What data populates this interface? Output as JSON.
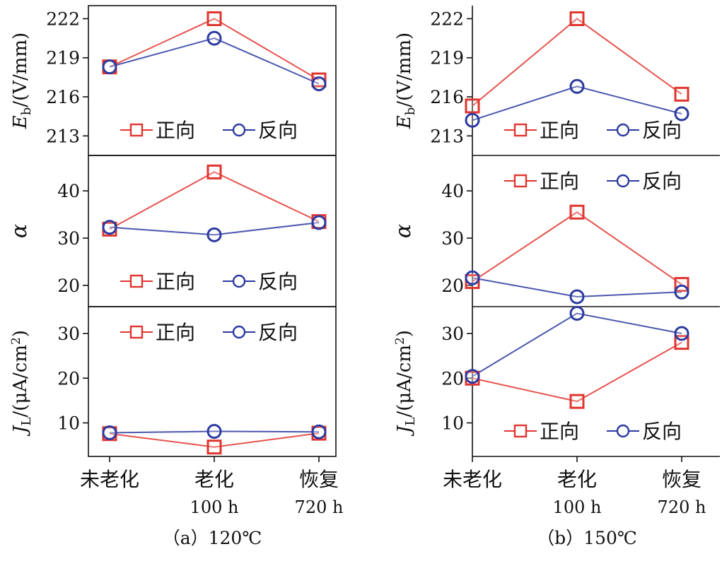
{
  "figure": {
    "categories": [
      "未老化",
      "老化",
      "恢复"
    ],
    "category_sublabels": [
      "",
      "100 h",
      "720 h"
    ],
    "legend": {
      "forward": "正向",
      "reverse": "反向"
    },
    "colors": {
      "forward": "#e0352f",
      "reverse": "#2b3aa0",
      "axis": "#111111"
    }
  },
  "chart_data": [
    {
      "type": "line",
      "panel": "a",
      "row": 0,
      "caption": "（a）120℃",
      "ylabel": "E_b/(V/mm)",
      "ylim": [
        211.5,
        223
      ],
      "yticks": [
        213,
        216,
        219,
        222
      ],
      "categories": [
        "未老化",
        "老化 100 h",
        "恢复 720 h"
      ],
      "series": [
        {
          "name": "正向",
          "values": [
            218.3,
            222.0,
            217.3
          ]
        },
        {
          "name": "反向",
          "values": [
            218.3,
            220.5,
            217.0
          ]
        }
      ],
      "legend_position": "bottom"
    },
    {
      "type": "line",
      "panel": "a",
      "row": 1,
      "caption": "（a）120℃",
      "ylabel": "α",
      "ylim": [
        15.5,
        47.5
      ],
      "yticks": [
        20,
        30,
        40
      ],
      "categories": [
        "未老化",
        "老化 100 h",
        "恢复 720 h"
      ],
      "series": [
        {
          "name": "正向",
          "values": [
            31.9,
            44.0,
            33.5
          ]
        },
        {
          "name": "反向",
          "values": [
            32.3,
            30.7,
            33.3
          ]
        }
      ],
      "legend_position": "bottom"
    },
    {
      "type": "line",
      "panel": "a",
      "row": 2,
      "caption": "（a）120℃",
      "ylabel": "J_L/(μA/cm2)",
      "ylim": [
        2.5,
        36
      ],
      "yticks": [
        10,
        20,
        30
      ],
      "categories": [
        "未老化",
        "老化 100 h",
        "恢复 720 h"
      ],
      "series": [
        {
          "name": "正向",
          "values": [
            7.6,
            4.6,
            7.7
          ]
        },
        {
          "name": "反向",
          "values": [
            7.8,
            8.1,
            8.0
          ]
        }
      ],
      "legend_position": "top"
    },
    {
      "type": "line",
      "panel": "b",
      "row": 0,
      "caption": "（b）150℃",
      "ylabel": "E_b/(V/mm)",
      "ylim": [
        211.5,
        223
      ],
      "yticks": [
        213,
        216,
        219,
        222
      ],
      "categories": [
        "未老化",
        "老化 100 h",
        "恢复 720 h"
      ],
      "series": [
        {
          "name": "正向",
          "values": [
            215.3,
            222.0,
            216.2
          ]
        },
        {
          "name": "反向",
          "values": [
            214.2,
            216.8,
            214.7
          ]
        }
      ],
      "legend_position": "bottom"
    },
    {
      "type": "line",
      "panel": "b",
      "row": 1,
      "caption": "（b）150℃",
      "ylabel": "α",
      "ylim": [
        15.5,
        47.5
      ],
      "yticks": [
        20,
        30,
        40
      ],
      "categories": [
        "未老化",
        "老化 100 h",
        "恢复 720 h"
      ],
      "series": [
        {
          "name": "正向",
          "values": [
            20.8,
            35.5,
            20.2
          ]
        },
        {
          "name": "反向",
          "values": [
            21.6,
            17.6,
            18.6
          ]
        }
      ],
      "legend_position": "top"
    },
    {
      "type": "line",
      "panel": "b",
      "row": 2,
      "caption": "（b）150℃",
      "ylabel": "J_L/(μA/cm2)",
      "ylim": [
        2.5,
        36
      ],
      "yticks": [
        10,
        20,
        30
      ],
      "categories": [
        "未老化",
        "老化 100 h",
        "恢复 720 h"
      ],
      "series": [
        {
          "name": "正向",
          "values": [
            20.0,
            14.8,
            28.0
          ]
        },
        {
          "name": "反向",
          "values": [
            20.4,
            34.5,
            30.0
          ]
        }
      ],
      "legend_position": "bottom"
    }
  ]
}
